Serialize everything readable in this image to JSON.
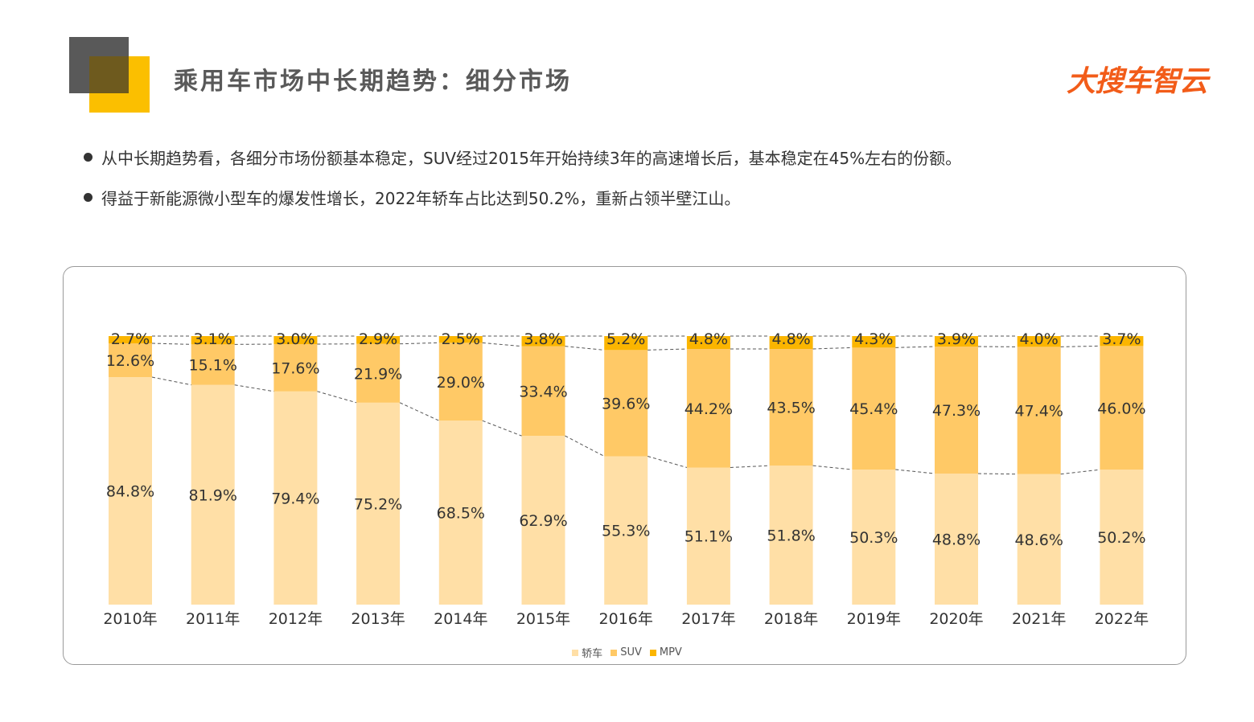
{
  "header": {
    "title": "乘用车市场中长期趋势：细分市场",
    "logo_text": "大搜车智云"
  },
  "bullets": [
    "从中长期趋势看，各细分市场份额基本稳定，SUV经过2015年开始持续3年的高速增长后，基本稳定在45%左右的份额。",
    "得益于新能源微小型车的爆发性增长，2022年轿车占比达到50.2%，重新占领半壁江山。"
  ],
  "colors": {
    "sedan": "#ffdfa6",
    "suv": "#ffc966",
    "mpv": "#fbb500",
    "deco_dark": "#595959",
    "deco_yellow": "#fbbf00",
    "logo": "#f25c19"
  },
  "chart_data": {
    "type": "bar",
    "stacked": true,
    "categories": [
      "2010年",
      "2011年",
      "2012年",
      "2013年",
      "2014年",
      "2015年",
      "2016年",
      "2017年",
      "2018年",
      "2019年",
      "2020年",
      "2021年",
      "2022年"
    ],
    "series": [
      {
        "name": "轿车",
        "values": [
          84.8,
          81.9,
          79.4,
          75.2,
          68.5,
          62.9,
          55.3,
          51.1,
          51.8,
          50.3,
          48.8,
          48.6,
          50.2
        ],
        "labels": [
          "84.8%",
          "81.9%",
          "79.4%",
          "75.2%",
          "68.5%",
          "62.9%",
          "55.3%",
          "51.1%",
          "51.8%",
          "50.3%",
          "48.8%",
          "48.6%",
          "50.2%"
        ]
      },
      {
        "name": "SUV",
        "values": [
          12.6,
          15.1,
          17.6,
          21.9,
          29.0,
          33.4,
          39.6,
          44.2,
          43.5,
          45.4,
          47.3,
          47.4,
          46.0
        ],
        "labels": [
          "12.6%",
          "15.1%",
          "17.6%",
          "21.9%",
          "29.0%",
          "33.4%",
          "39.6%",
          "44.2%",
          "43.5%",
          "45.4%",
          "47.3%",
          "47.4%",
          "46.0%"
        ]
      },
      {
        "name": "MPV",
        "values": [
          2.7,
          3.1,
          3.0,
          2.9,
          2.5,
          3.8,
          5.2,
          4.8,
          4.8,
          4.3,
          3.9,
          4.0,
          3.7
        ],
        "labels": [
          "2.7%",
          "3.1%",
          "3.0%",
          "2.9%",
          "2.5%",
          "3.8%",
          "5.2%",
          "4.8%",
          "4.8%",
          "4.3%",
          "3.9%",
          "4.0%",
          "3.7%"
        ]
      }
    ],
    "ylim": [
      0,
      100
    ],
    "grid": false,
    "legend_position": "bottom-center",
    "series_lines": "dashed"
  }
}
